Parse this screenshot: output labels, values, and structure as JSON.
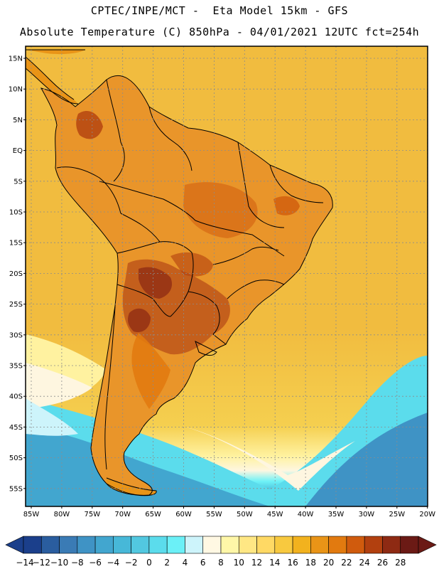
{
  "header": {
    "line1": "CPTEC/INPE/MCT -  Eta Model 15km - GFS",
    "line2": "Absolute Temperature (C) 850hPa - 04/01/2021 12UTC fct=254h"
  },
  "axes": {
    "lat_labels": [
      "15N",
      "10N",
      "5N",
      "EQ",
      "5S",
      "10S",
      "15S",
      "20S",
      "25S",
      "30S",
      "35S",
      "40S",
      "45S",
      "50S",
      "55S"
    ],
    "lon_labels": [
      "85W",
      "80W",
      "75W",
      "70W",
      "65W",
      "60W",
      "55W",
      "50W",
      "45W",
      "40W",
      "35W",
      "30W",
      "25W",
      "20W"
    ]
  },
  "colorbar": {
    "labels": [
      "-14",
      "-12",
      "-10",
      "-8",
      "-6",
      "-4",
      "-2",
      "0",
      "2",
      "4",
      "6",
      "8",
      "10",
      "12",
      "14",
      "16",
      "18",
      "20",
      "22",
      "24",
      "26",
      "28"
    ],
    "colors": [
      "#1b3f8b",
      "#2a5d9f",
      "#3a7bb5",
      "#3f93c5",
      "#42a6cf",
      "#47b8d8",
      "#52c8e0",
      "#5bdcec",
      "#6bf0f7",
      "#cdf4fb",
      "#fff8e3",
      "#fff7a8",
      "#ffe784",
      "#ffd964",
      "#f8c93f",
      "#f2b21e",
      "#e99417",
      "#e27a0f",
      "#d05b0d",
      "#b2400f",
      "#8e2a13",
      "#6b1a15"
    ]
  },
  "map": {
    "ocean_color": "#f1bc3f",
    "land_color": "#e9952a",
    "hot_color": "#c45f1c",
    "coast_color": "#000000"
  }
}
